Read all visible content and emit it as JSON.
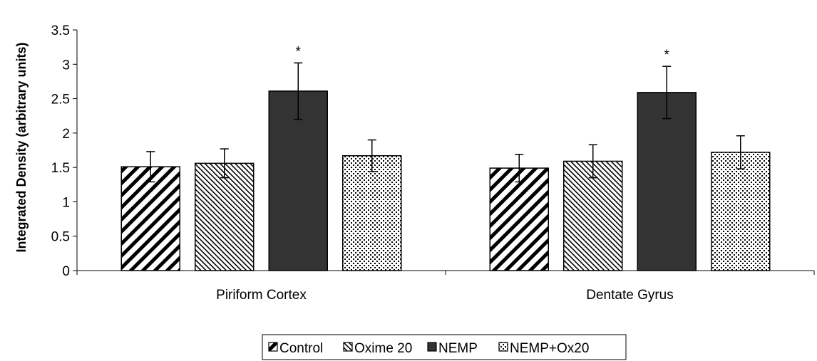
{
  "chart_data": {
    "type": "bar",
    "title": "",
    "xlabel": "",
    "ylabel": "Integrated Density (arbitrary units)",
    "categories": [
      "Piriform Cortex",
      "Dentate Gyrus"
    ],
    "ylim": [
      0,
      3.5
    ],
    "yticks": [
      "0",
      "0.5",
      "1",
      "1.5",
      "2",
      "2.5",
      "3",
      "3.5"
    ],
    "grid": false,
    "legend_position": "bottom",
    "series": [
      {
        "name": "Control",
        "values": [
          1.51,
          1.49
        ],
        "errors": [
          0.22,
          0.2
        ],
        "pattern": "diagonal-stripes"
      },
      {
        "name": "Oxime 20",
        "values": [
          1.56,
          1.59
        ],
        "errors": [
          0.21,
          0.24
        ],
        "pattern": "fine-diagonal-stripes"
      },
      {
        "name": "NEMP",
        "values": [
          2.61,
          2.59
        ],
        "errors": [
          0.41,
          0.38
        ],
        "pattern": "solid-dark"
      },
      {
        "name": "NEMP+Ox20",
        "values": [
          1.67,
          1.72
        ],
        "errors": [
          0.23,
          0.24
        ],
        "pattern": "dots"
      }
    ],
    "annotations": [
      {
        "category": "Piriform Cortex",
        "series": "NEMP",
        "text": "*"
      },
      {
        "category": "Dentate Gyrus",
        "series": "NEMP",
        "text": "*"
      }
    ],
    "colors": {
      "axis": "#000000",
      "bar_stroke": "#000000",
      "dark_fill": "#333333",
      "background": "#ffffff"
    }
  }
}
